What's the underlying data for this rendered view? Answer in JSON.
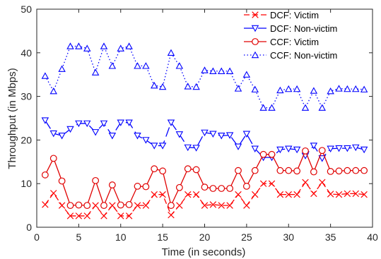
{
  "chart_data": {
    "type": "line",
    "xlabel": "Time (in seconds)",
    "ylabel": "Throughput (in Mbps)",
    "xlim": [
      0,
      40
    ],
    "ylim": [
      0,
      50
    ],
    "xticks": [
      "0",
      "5",
      "10",
      "15",
      "20",
      "25",
      "30",
      "35",
      "40"
    ],
    "yticks": [
      "0",
      "10",
      "20",
      "30",
      "40",
      "50"
    ],
    "grid": false,
    "legend_position": "top-right",
    "x": [
      1,
      2,
      3,
      4,
      5,
      6,
      7,
      8,
      9,
      10,
      11,
      12,
      13,
      14,
      15,
      16,
      17,
      18,
      19,
      20,
      21,
      22,
      23,
      24,
      25,
      26,
      27,
      28,
      29,
      30,
      31,
      32,
      33,
      34,
      35,
      36,
      37,
      38,
      39
    ],
    "series": [
      {
        "name": "DCF: Victim",
        "color": "#ff0000",
        "marker": "x",
        "dash": "8,4",
        "values": [
          5.2,
          7.8,
          5.0,
          2.6,
          2.6,
          2.6,
          5.0,
          2.6,
          5.0,
          2.6,
          2.6,
          5.0,
          5.0,
          7.5,
          7.5,
          2.8,
          5.0,
          7.5,
          7.5,
          5.0,
          5.2,
          5.0,
          5.0,
          7.5,
          5.0,
          7.5,
          10.0,
          10.0,
          7.5,
          7.5,
          7.5,
          10.3,
          7.7,
          10.3,
          7.6,
          7.5,
          7.7,
          7.7,
          7.5
        ]
      },
      {
        "name": "DCF: Non-victim",
        "color": "#0000ff",
        "marker": "triangle-down",
        "dash": "14,6",
        "values": [
          24.5,
          21.5,
          21.0,
          22.5,
          23.8,
          23.8,
          21.8,
          23.8,
          21.0,
          24.0,
          24.0,
          21.0,
          20.0,
          18.7,
          18.7,
          24.0,
          21.3,
          18.3,
          18.2,
          21.7,
          21.4,
          21.0,
          21.1,
          18.5,
          21.4,
          18.0,
          16.0,
          16.0,
          17.8,
          18.0,
          17.8,
          16.4,
          18.7,
          15.8,
          18.0,
          18.1,
          18.1,
          18.3,
          17.8
        ]
      },
      {
        "name": "CCF: Victim",
        "color": "#e00000",
        "marker": "circle",
        "dash": "",
        "values": [
          12.0,
          15.8,
          10.6,
          5.0,
          5.1,
          5.0,
          10.7,
          5.0,
          9.7,
          5.1,
          5.2,
          9.4,
          9.3,
          13.4,
          12.9,
          5.0,
          9.1,
          13.4,
          13.2,
          9.2,
          8.9,
          8.9,
          8.9,
          13.0,
          9.4,
          13.0,
          16.7,
          16.7,
          13.0,
          13.0,
          12.9,
          17.5,
          12.7,
          17.6,
          12.8,
          12.9,
          13.0,
          13.0,
          13.0
        ]
      },
      {
        "name": "CCF: Non-victim",
        "color": "#0000ff",
        "marker": "triangle-up",
        "dash": "1.5,3",
        "values": [
          34.7,
          31.2,
          36.3,
          41.5,
          41.5,
          41.0,
          35.5,
          41.5,
          37.0,
          41.0,
          41.5,
          37.0,
          37.0,
          32.5,
          32.2,
          40.0,
          37.0,
          32.3,
          32.2,
          36.0,
          35.8,
          35.8,
          35.8,
          31.8,
          35.0,
          31.6,
          27.4,
          27.4,
          31.4,
          31.7,
          31.7,
          27.4,
          31.3,
          27.4,
          31.2,
          31.8,
          31.7,
          31.7,
          31.6
        ]
      }
    ]
  }
}
